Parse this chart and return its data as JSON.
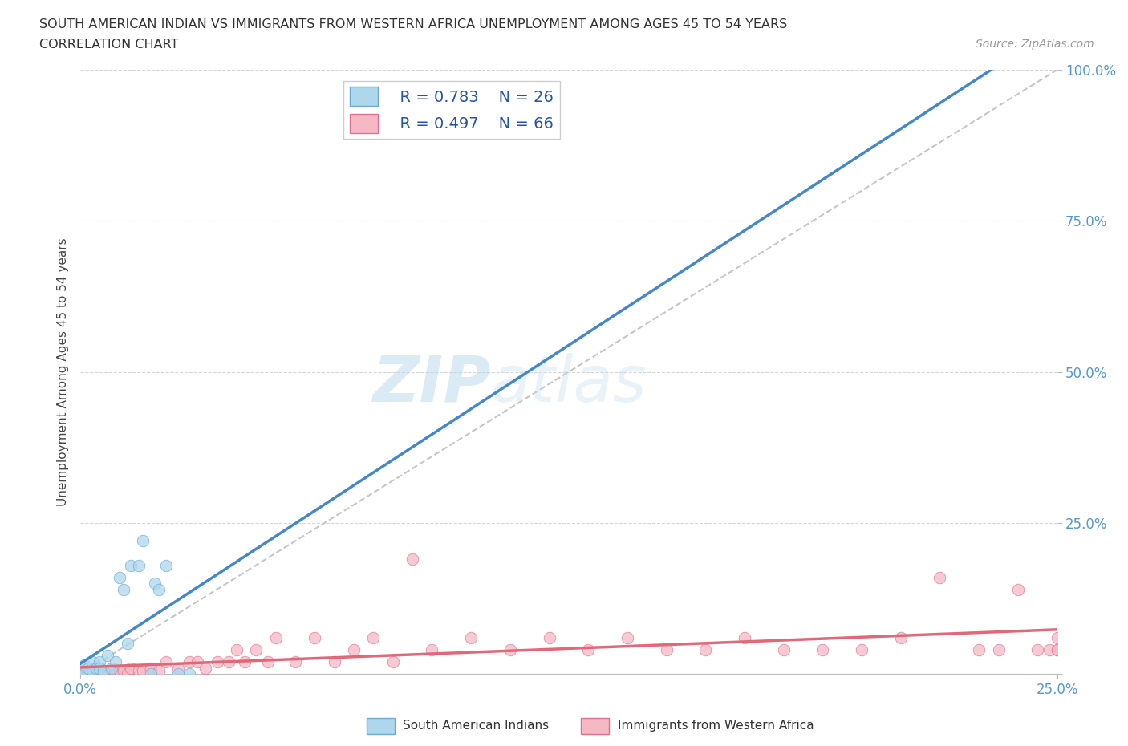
{
  "title_line1": "SOUTH AMERICAN INDIAN VS IMMIGRANTS FROM WESTERN AFRICA UNEMPLOYMENT AMONG AGES 45 TO 54 YEARS",
  "title_line2": "CORRELATION CHART",
  "source_text": "Source: ZipAtlas.com",
  "ylabel": "Unemployment Among Ages 45 to 54 years",
  "blue_color": "#AED6EC",
  "blue_edge_color": "#6AAAD4",
  "blue_line_color": "#4488CC",
  "pink_color": "#F5B8C4",
  "pink_edge_color": "#E07090",
  "pink_line_color": "#E06878",
  "diag_line_color": "#C0C0C0",
  "grid_color": "#CCCCCC",
  "tick_color": "#5599CC",
  "legend_R_blue": "R = 0.783",
  "legend_N_blue": "N = 26",
  "legend_R_pink": "R = 0.497",
  "legend_N_pink": "N = 66",
  "watermark": "ZIPatlas",
  "blue_scatter_x": [
    0.0,
    0.001,
    0.001,
    0.002,
    0.002,
    0.003,
    0.003,
    0.004,
    0.005,
    0.005,
    0.006,
    0.007,
    0.008,
    0.009,
    0.01,
    0.011,
    0.012,
    0.013,
    0.015,
    0.016,
    0.018,
    0.019,
    0.02,
    0.022,
    0.025,
    0.028
  ],
  "blue_scatter_y": [
    0.0,
    0.005,
    0.015,
    0.0,
    0.01,
    0.02,
    0.005,
    0.01,
    0.02,
    0.01,
    0.005,
    0.03,
    0.01,
    0.02,
    0.16,
    0.14,
    0.05,
    0.18,
    0.18,
    0.22,
    0.0,
    0.15,
    0.14,
    0.18,
    0.0,
    0.0
  ],
  "pink_scatter_x": [
    0.0,
    0.0,
    0.001,
    0.001,
    0.002,
    0.002,
    0.003,
    0.003,
    0.004,
    0.004,
    0.005,
    0.005,
    0.006,
    0.006,
    0.007,
    0.008,
    0.009,
    0.01,
    0.011,
    0.012,
    0.013,
    0.015,
    0.016,
    0.018,
    0.02,
    0.022,
    0.025,
    0.028,
    0.03,
    0.032,
    0.035,
    0.038,
    0.04,
    0.042,
    0.045,
    0.048,
    0.05,
    0.055,
    0.06,
    0.065,
    0.07,
    0.075,
    0.08,
    0.085,
    0.09,
    0.1,
    0.11,
    0.12,
    0.13,
    0.14,
    0.15,
    0.16,
    0.17,
    0.18,
    0.19,
    0.2,
    0.21,
    0.22,
    0.23,
    0.235,
    0.24,
    0.245,
    0.248,
    0.25,
    0.25,
    0.25
  ],
  "pink_scatter_y": [
    0.0,
    0.005,
    0.0,
    0.005,
    0.0,
    0.005,
    0.0,
    0.005,
    0.0,
    0.01,
    0.0,
    0.005,
    0.005,
    0.0,
    0.0,
    0.005,
    0.0,
    0.005,
    0.005,
    0.0,
    0.01,
    0.005,
    0.005,
    0.01,
    0.005,
    0.02,
    0.01,
    0.02,
    0.02,
    0.01,
    0.02,
    0.02,
    0.04,
    0.02,
    0.04,
    0.02,
    0.06,
    0.02,
    0.06,
    0.02,
    0.04,
    0.06,
    0.02,
    0.19,
    0.04,
    0.06,
    0.04,
    0.06,
    0.04,
    0.06,
    0.04,
    0.04,
    0.06,
    0.04,
    0.04,
    0.04,
    0.06,
    0.16,
    0.04,
    0.04,
    0.14,
    0.04,
    0.04,
    0.04,
    0.06,
    0.04
  ]
}
